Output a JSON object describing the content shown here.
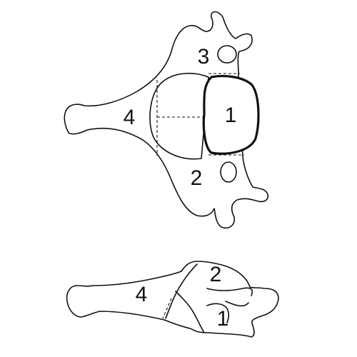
{
  "top_view": {
    "labels": {
      "one": "1",
      "two": "2",
      "three": "3",
      "four": "4"
    }
  },
  "side_view": {
    "labels": {
      "one": "1",
      "two": "2",
      "four": "4"
    }
  }
}
